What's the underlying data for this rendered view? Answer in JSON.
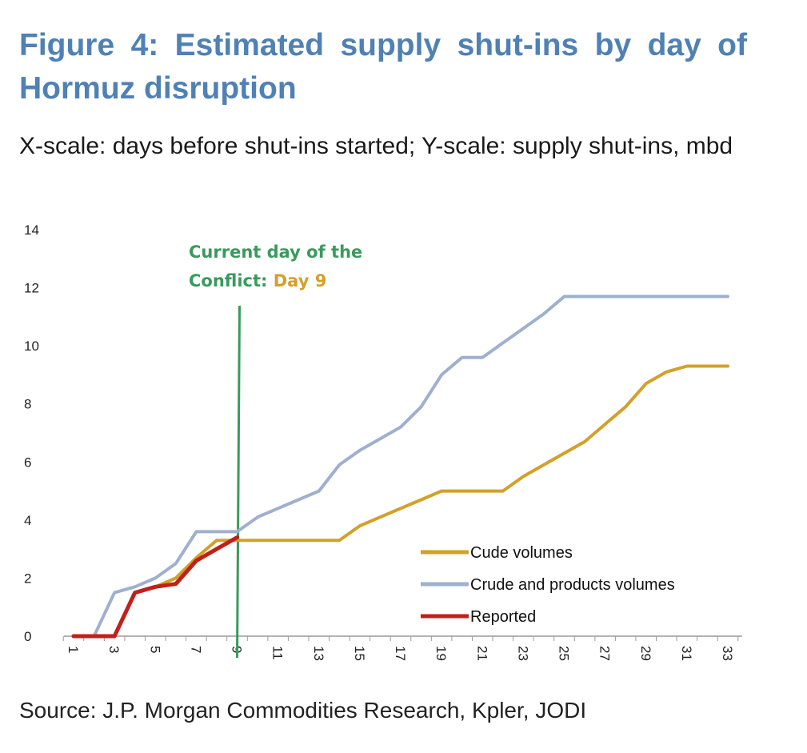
{
  "header": {
    "title": "Figure 4: Estimated supply shut-ins by day of Hormuz disruption",
    "subtitle": "X-scale: days before shut-ins started; Y-scale: supply shut-ins, mbd"
  },
  "footer": {
    "source": "Source: J.P. Morgan Commodities Research, Kpler, JODI"
  },
  "annotation": {
    "line1": "Current day of the",
    "line2_prefix": "Conflict: ",
    "line2_highlight": "Day 9",
    "day": 9,
    "color": "#3a9a5c",
    "highlight_color": "#d3a02a"
  },
  "chart_data": {
    "type": "line",
    "title": "Figure 4: Estimated supply shut-ins by day of Hormuz disruption",
    "subtitle": "X-scale: days before shut-ins started; Y-scale: supply shut-ins, mbd",
    "xlabel": "",
    "ylabel": "",
    "xlim": [
      1,
      33
    ],
    "ylim": [
      0,
      14
    ],
    "x_ticks": [
      1,
      3,
      5,
      7,
      9,
      11,
      13,
      15,
      17,
      19,
      21,
      23,
      25,
      27,
      29,
      31,
      33
    ],
    "y_ticks": [
      0,
      2,
      4,
      6,
      8,
      10,
      12,
      14
    ],
    "grid": false,
    "legend_position": "bottom-right",
    "series": [
      {
        "name": "Crude and products volumes",
        "color": "#9fb0cf",
        "x": [
          1,
          2,
          3,
          4,
          5,
          6,
          7,
          8,
          9,
          10,
          11,
          12,
          13,
          14,
          15,
          16,
          17,
          18,
          19,
          20,
          21,
          22,
          23,
          24,
          25,
          26,
          27,
          28,
          29,
          30,
          31,
          32,
          33
        ],
        "values": [
          0,
          0,
          1.5,
          1.7,
          2.0,
          2.5,
          3.6,
          3.6,
          3.6,
          4.1,
          4.4,
          4.7,
          5.0,
          5.9,
          6.4,
          6.8,
          7.2,
          7.9,
          9.0,
          9.6,
          9.6,
          10.1,
          10.6,
          11.1,
          11.7,
          11.7,
          11.7,
          11.7,
          11.7,
          11.7,
          11.7,
          11.7,
          11.7
        ]
      },
      {
        "name": "Cude volumes",
        "color": "#d3a02a",
        "x": [
          1,
          2,
          3,
          4,
          5,
          6,
          7,
          8,
          9,
          10,
          11,
          12,
          13,
          14,
          15,
          16,
          17,
          18,
          19,
          20,
          21,
          22,
          23,
          24,
          25,
          26,
          27,
          28,
          29,
          30,
          31,
          32,
          33
        ],
        "values": [
          0,
          0,
          0,
          1.5,
          1.7,
          2.0,
          2.7,
          3.3,
          3.3,
          3.3,
          3.3,
          3.3,
          3.3,
          3.3,
          3.8,
          4.1,
          4.4,
          4.7,
          5.0,
          5.0,
          5.0,
          5.0,
          5.5,
          5.9,
          6.3,
          6.7,
          7.3,
          7.9,
          8.7,
          9.1,
          9.3,
          9.3,
          9.3
        ]
      },
      {
        "name": "Reported",
        "color": "#c0201a",
        "x": [
          1,
          2,
          3,
          4,
          5,
          6,
          7,
          8,
          9
        ],
        "values": [
          0,
          0,
          0,
          1.5,
          1.7,
          1.8,
          2.6,
          3.0,
          3.4
        ]
      }
    ],
    "legend_order": [
      "Cude volumes",
      "Crude and products volumes",
      "Reported"
    ]
  }
}
